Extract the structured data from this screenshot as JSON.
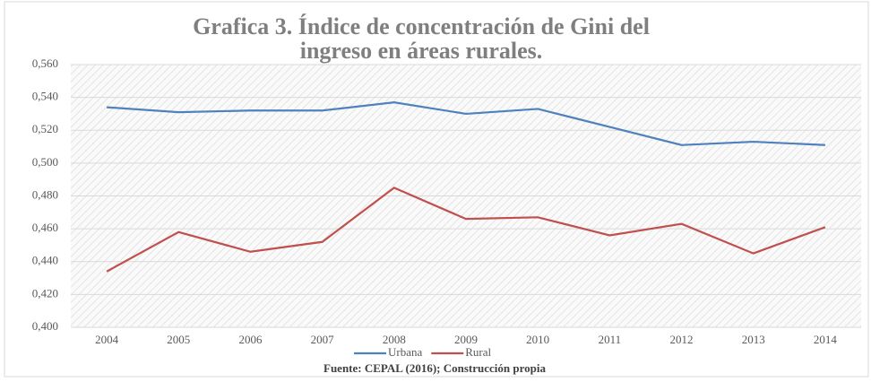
{
  "chart_data": {
    "type": "line",
    "title": [
      "Grafica 3. Índice de concentración de Gini del",
      "ingreso en áreas rurales."
    ],
    "source": "Fuente: CEPAL (2016); Construcción propia",
    "categories": [
      "2004",
      "2005",
      "2006",
      "2007",
      "2008",
      "2009",
      "2010",
      "2011",
      "2012",
      "2013",
      "2014"
    ],
    "series": [
      {
        "name": "Urbana",
        "color": "#4f81bd",
        "values": [
          0.534,
          0.531,
          0.532,
          0.532,
          0.537,
          0.53,
          0.533,
          0.522,
          0.511,
          0.513,
          0.511
        ]
      },
      {
        "name": "Rural",
        "color": "#c0504d",
        "values": [
          0.434,
          0.458,
          0.446,
          0.452,
          0.485,
          0.466,
          0.467,
          0.456,
          0.463,
          0.445,
          0.461
        ]
      }
    ],
    "ylim": [
      0.4,
      0.56
    ],
    "yticks": [
      {
        "value": 0.4,
        "label": "0,400"
      },
      {
        "value": 0.42,
        "label": "0,420"
      },
      {
        "value": 0.44,
        "label": "0,440"
      },
      {
        "value": 0.46,
        "label": "0,460"
      },
      {
        "value": 0.48,
        "label": "0,480"
      },
      {
        "value": 0.5,
        "label": "0,500"
      },
      {
        "value": 0.52,
        "label": "0,520"
      },
      {
        "value": 0.54,
        "label": "0,540"
      },
      {
        "value": 0.56,
        "label": "0,560"
      }
    ],
    "grid": true
  }
}
